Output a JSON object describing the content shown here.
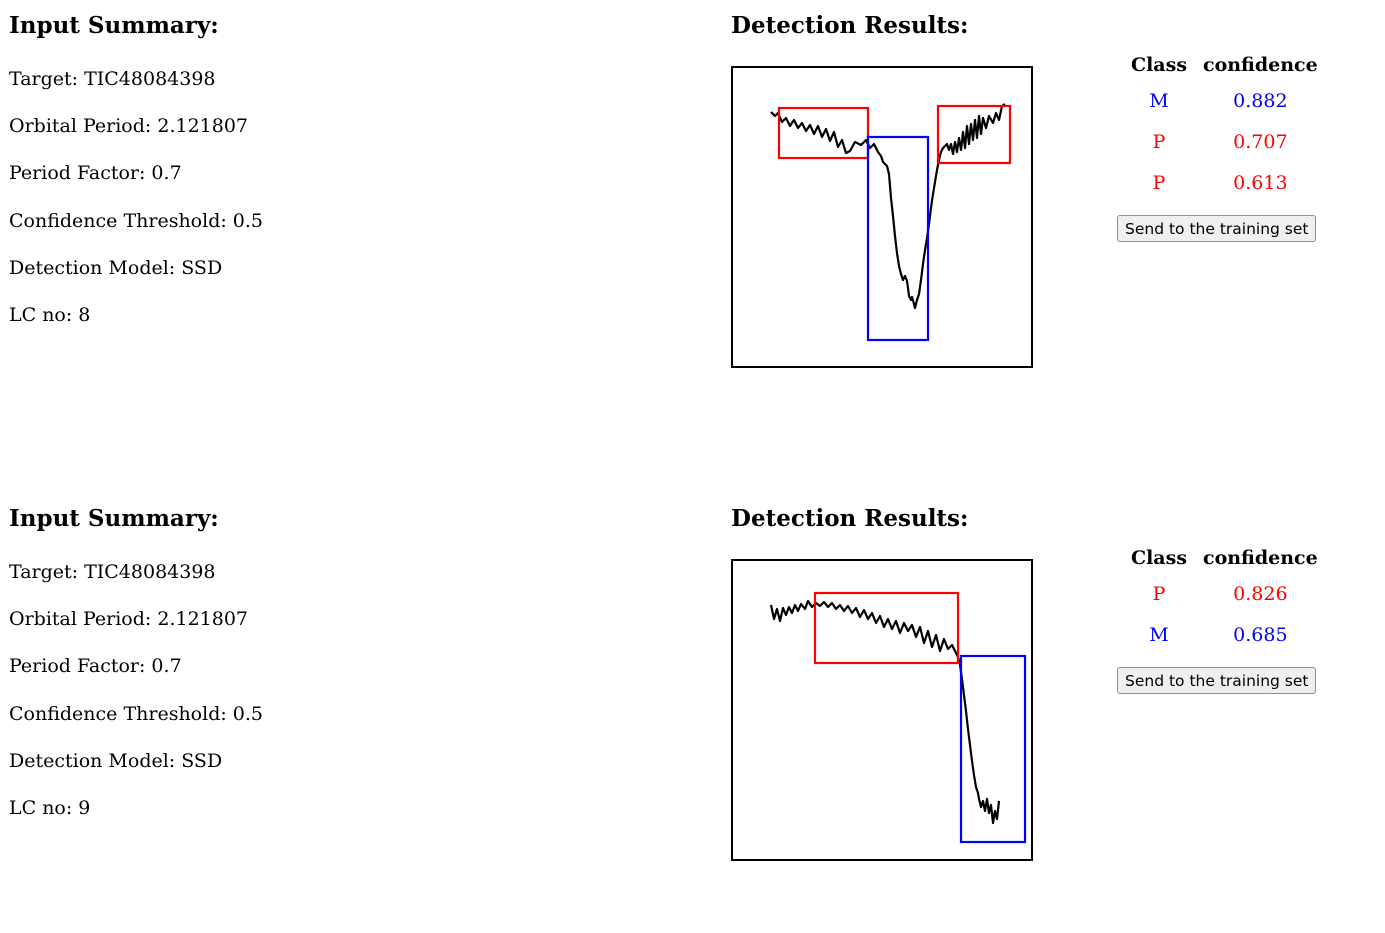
{
  "colors": {
    "M": "#0000ff",
    "P": "#ff0000"
  },
  "entries": [
    {
      "summary_title": "Input Summary:",
      "target": "Target: TIC48084398",
      "orbital_period": "Orbital Period: 2.121807",
      "period_factor": "Period Factor: 0.7",
      "confidence_threshold": "Confidence Threshold: 0.5",
      "detection_model": "Detection Model: SSD",
      "lc_no": "LC no: 8",
      "results_title": "Detection Results:",
      "col_class": "Class",
      "col_confidence": "confidence",
      "detections": [
        {
          "class": "M",
          "confidence": "0.882"
        },
        {
          "class": "P",
          "confidence": "0.707"
        },
        {
          "class": "P",
          "confidence": "0.613"
        }
      ],
      "button_label": "Send to the training set"
    },
    {
      "summary_title": "Input Summary:",
      "target": "Target: TIC48084398",
      "orbital_period": "Orbital Period: 2.121807",
      "period_factor": "Period Factor: 0.7",
      "confidence_threshold": "Confidence Threshold: 0.5",
      "detection_model": "Detection Model: SSD",
      "lc_no": "LC no: 9",
      "results_title": "Detection Results:",
      "col_class": "Class",
      "col_confidence": "confidence",
      "detections": [
        {
          "class": "P",
          "confidence": "0.826"
        },
        {
          "class": "M",
          "confidence": "0.685"
        }
      ],
      "button_label": "Send to the training set"
    }
  ]
}
